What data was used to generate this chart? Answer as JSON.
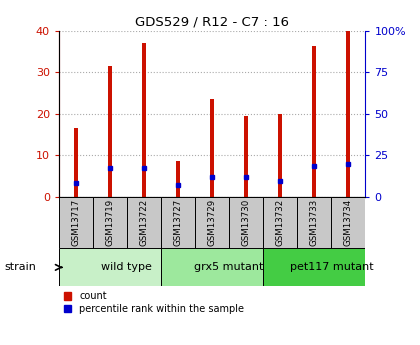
{
  "title": "GDS529 / R12 - C7 : 16",
  "samples": [
    "GSM13717",
    "GSM13719",
    "GSM13722",
    "GSM13727",
    "GSM13729",
    "GSM13730",
    "GSM13732",
    "GSM13733",
    "GSM13734"
  ],
  "counts": [
    16.5,
    31.5,
    37.0,
    8.5,
    23.5,
    19.5,
    20.0,
    36.5,
    40.0
  ],
  "percentile_ranks": [
    8.5,
    17.0,
    17.0,
    7.0,
    12.0,
    12.0,
    9.5,
    18.5,
    20.0
  ],
  "groups": [
    {
      "label": "wild type",
      "start": 0,
      "end": 3
    },
    {
      "label": "grx5 mutant",
      "start": 3,
      "end": 6
    },
    {
      "label": "pet117 mutant",
      "start": 6,
      "end": 9
    }
  ],
  "group_colors": [
    "#c8f0c8",
    "#9de89d",
    "#44cc44"
  ],
  "strain_label": "strain",
  "ylim_left": [
    0,
    40
  ],
  "ylim_right": [
    0,
    100
  ],
  "yticks_left": [
    0,
    10,
    20,
    30,
    40
  ],
  "yticks_right": [
    0,
    25,
    50,
    75,
    100
  ],
  "yticklabels_right": [
    "0",
    "25",
    "50",
    "75",
    "100%"
  ],
  "bar_color": "#cc1100",
  "dot_color": "#0000cc",
  "left_tick_color": "#cc1100",
  "right_tick_color": "#0000cc",
  "legend_count_label": "count",
  "legend_pct_label": "percentile rank within the sample",
  "grid_color": "#aaaaaa",
  "sample_box_color": "#c8c8c8"
}
